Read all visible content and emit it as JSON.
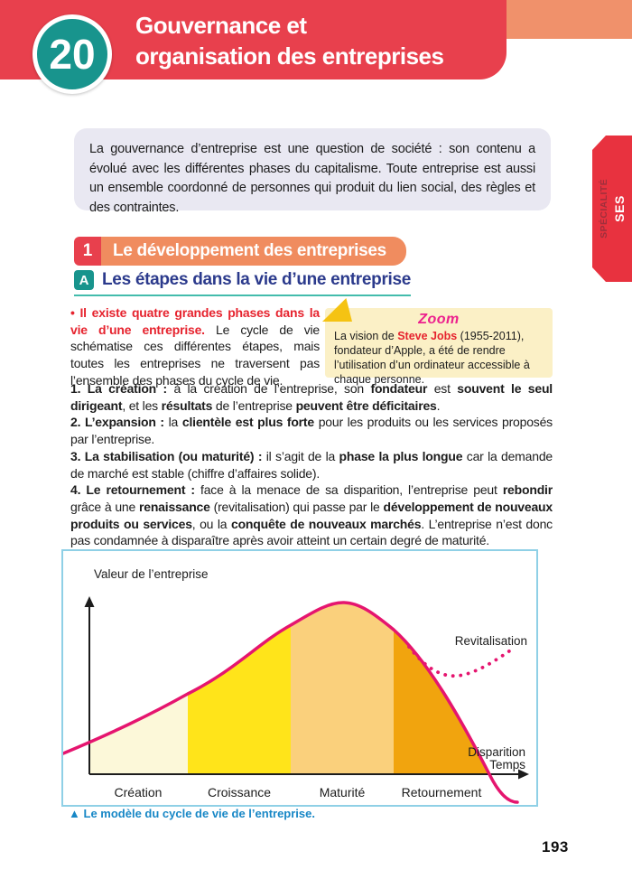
{
  "page": {
    "number": "193"
  },
  "header": {
    "chapter_number": "20",
    "title_line1": "Gouvernance et",
    "title_line2": "organisation des entreprises"
  },
  "side_tab": {
    "label_top": "SPÉCIALITÉ",
    "label_bottom": "SES"
  },
  "intro": {
    "text": "La gouvernance d’entreprise est une question de société : son contenu a évolué avec les différentes phases du capitalisme. Toute entreprise est aussi un ensemble coordonné de personnes qui produit du lien social, des règles et des contraintes."
  },
  "section1": {
    "number": "1",
    "title": "Le développement des entreprises"
  },
  "subsectionA": {
    "letter": "A",
    "title": "Les étapes dans la vie d’une entreprise"
  },
  "paragraph1": {
    "segments": [
      {
        "t": "• Il existe quatre grandes phases dans la vie d’une entreprise. ",
        "s": "rb"
      },
      {
        "t": "Le cycle de vie schématise ces différentes étapes, mais toutes les entreprises ne traversent pas l’ensemble des phases du cycle de vie.",
        "s": "n"
      }
    ]
  },
  "zoom_box": {
    "title": "Zoom",
    "segments": [
      {
        "t": "La vision de ",
        "s": "n"
      },
      {
        "t": "Steve Jobs",
        "s": "rb"
      },
      {
        "t": " (1955-2011), fondateur d’Apple, a été de rendre l’utilisation d’un ordinateur accessible à chaque personne.",
        "s": "n"
      }
    ]
  },
  "list": [
    {
      "segments": [
        {
          "t": "1. La création : ",
          "s": "b"
        },
        {
          "t": "à la création de l’entreprise, son ",
          "s": "n"
        },
        {
          "t": "fondateur",
          "s": "b"
        },
        {
          "t": " est ",
          "s": "n"
        },
        {
          "t": "souvent le seul dirigeant",
          "s": "b"
        },
        {
          "t": ", et les ",
          "s": "n"
        },
        {
          "t": "résultats",
          "s": "b"
        },
        {
          "t": " de l’entreprise ",
          "s": "n"
        },
        {
          "t": "peuvent être déficitaires",
          "s": "b"
        },
        {
          "t": ".",
          "s": "n"
        }
      ]
    },
    {
      "segments": [
        {
          "t": "2. L’expansion : ",
          "s": "b"
        },
        {
          "t": "la ",
          "s": "n"
        },
        {
          "t": "clientèle est plus forte",
          "s": "b"
        },
        {
          "t": " pour les produits ou les services proposés par l’entreprise.",
          "s": "n"
        }
      ]
    },
    {
      "segments": [
        {
          "t": "3. La stabilisation (ou maturité) : ",
          "s": "b"
        },
        {
          "t": "il s’agit de la ",
          "s": "n"
        },
        {
          "t": "phase la plus longue",
          "s": "b"
        },
        {
          "t": " car la demande de marché est stable (chiffre d’affaires solide).",
          "s": "n"
        }
      ]
    },
    {
      "segments": [
        {
          "t": "4. Le retournement : ",
          "s": "b"
        },
        {
          "t": "face à la menace de sa disparition, l’entreprise peut ",
          "s": "n"
        },
        {
          "t": "rebondir",
          "s": "b"
        },
        {
          "t": " grâce à une ",
          "s": "n"
        },
        {
          "t": "renaissance",
          "s": "b"
        },
        {
          "t": " (revitalisation) qui passe par le ",
          "s": "n"
        },
        {
          "t": "développement de nouveaux produits ou services",
          "s": "b"
        },
        {
          "t": ", ou la ",
          "s": "n"
        },
        {
          "t": "conquête de nouveaux marchés",
          "s": "b"
        },
        {
          "t": ". L’entreprise n’est donc pas condamnée à disparaître après avoir atteint un certain degré de maturité.",
          "s": "n"
        }
      ]
    }
  ],
  "figure": {
    "type": "area",
    "ylabel": "Valeur de l’entreprise",
    "xlabel": "Temps",
    "curve_color": "#E5156F",
    "phases": [
      {
        "label": "Création",
        "color": "#FCF8D9"
      },
      {
        "label": "Croissance",
        "color": "#FFE41A"
      },
      {
        "label": "Maturité",
        "color": "#FAD07C"
      },
      {
        "label": "Retournement",
        "color": "#F1A40E"
      }
    ],
    "annotations": [
      {
        "label": "Revitalisation"
      },
      {
        "label": "Disparition"
      }
    ]
  },
  "caption": {
    "marker": "▲",
    "text": "Le modèle du cycle de vie de l’entreprise."
  }
}
